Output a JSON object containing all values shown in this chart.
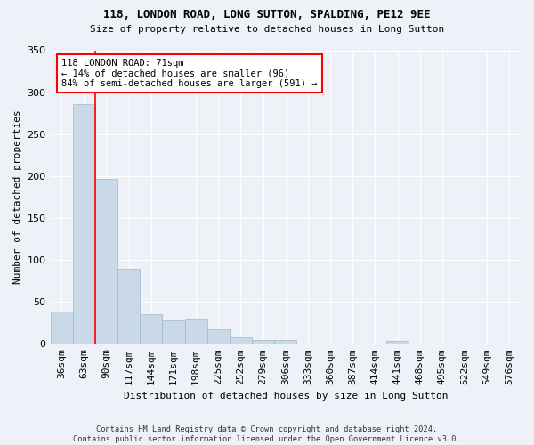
{
  "title1": "118, LONDON ROAD, LONG SUTTON, SPALDING, PE12 9EE",
  "title2": "Size of property relative to detached houses in Long Sutton",
  "xlabel": "Distribution of detached houses by size in Long Sutton",
  "ylabel": "Number of detached properties",
  "footnote": "Contains HM Land Registry data © Crown copyright and database right 2024.\nContains public sector information licensed under the Open Government Licence v3.0.",
  "bin_labels": [
    "36sqm",
    "63sqm",
    "90sqm",
    "117sqm",
    "144sqm",
    "171sqm",
    "198sqm",
    "225sqm",
    "252sqm",
    "279sqm",
    "306sqm",
    "333sqm",
    "360sqm",
    "387sqm",
    "414sqm",
    "441sqm",
    "468sqm",
    "495sqm",
    "522sqm",
    "549sqm",
    "576sqm"
  ],
  "bar_values": [
    39,
    286,
    197,
    89,
    35,
    28,
    30,
    17,
    8,
    5,
    5,
    0,
    0,
    0,
    0,
    3,
    0,
    0,
    0,
    0,
    0
  ],
  "bar_color": "#c9d9e8",
  "bar_edge_color": "#a0b8cc",
  "red_line_x": 1.5,
  "annotation_text": "118 LONDON ROAD: 71sqm\n← 14% of detached houses are smaller (96)\n84% of semi-detached houses are larger (591) →",
  "annotation_box_color": "white",
  "annotation_box_edge": "red",
  "bg_color": "#eef2f8",
  "grid_color": "#ffffff",
  "ylim": [
    0,
    350
  ],
  "yticks": [
    0,
    50,
    100,
    150,
    200,
    250,
    300,
    350
  ]
}
